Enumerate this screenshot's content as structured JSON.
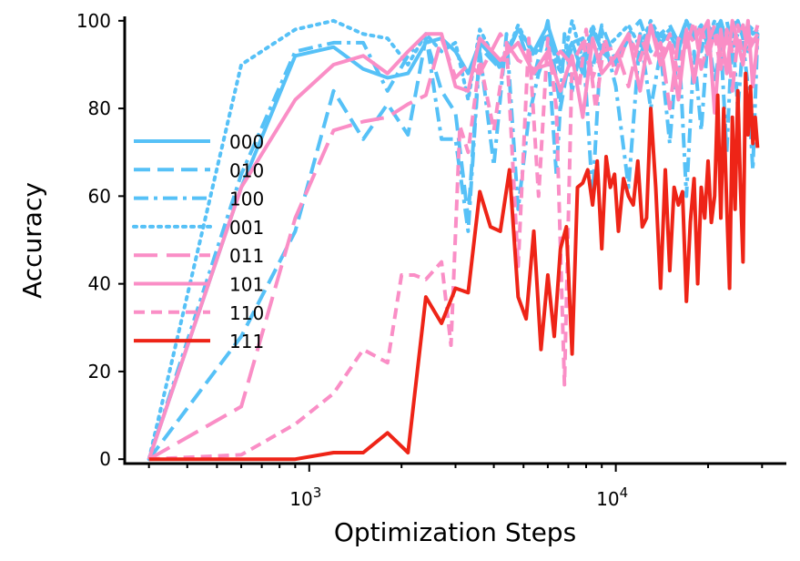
{
  "chart_data": {
    "type": "line",
    "xscale": "log",
    "xlabel": "Optimization Steps",
    "ylabel": "Accuracy",
    "xlim": [
      250,
      36000
    ],
    "ylim": [
      -1,
      101
    ],
    "yticks": [
      0,
      20,
      40,
      60,
      80,
      100
    ],
    "xticks": [
      {
        "value": 1000,
        "base": "10",
        "exp": "3"
      },
      {
        "value": 10000,
        "base": "10",
        "exp": "4"
      }
    ],
    "legend_position": "center-left",
    "series": [
      {
        "name": "000",
        "color": "#56c1f7",
        "dash": "solid",
        "x": [
          300,
          600,
          900,
          1200,
          1500,
          1800,
          2100,
          2400,
          2700,
          3000,
          3300,
          3600,
          4200,
          4800,
          5400,
          6000,
          6600,
          7200,
          7800,
          8400,
          9000,
          10000,
          11000,
          12000,
          13000,
          14000,
          15000,
          16000,
          17000,
          18000,
          19000,
          20000,
          21000,
          22000,
          23000,
          24000,
          25000,
          26000,
          27000,
          28000,
          29000
        ],
        "y": [
          0,
          62,
          92,
          94,
          89,
          87,
          88,
          95,
          96,
          93,
          88,
          95,
          90,
          98,
          93,
          99,
          90,
          95,
          88,
          98,
          93,
          90,
          96,
          92,
          99,
          95,
          97,
          93,
          100,
          96,
          99,
          94,
          97,
          100,
          95,
          98,
          100,
          96,
          99,
          97,
          98
        ]
      },
      {
        "name": "010",
        "color": "#56c1f7",
        "dash": "dashed",
        "x": [
          300,
          600,
          900,
          1200,
          1500,
          1800,
          2100,
          2400,
          2700,
          3000,
          3300,
          3600,
          4200,
          4800,
          5400,
          6000,
          6600,
          7200,
          7800,
          8400,
          9000,
          10000,
          11000,
          12000,
          13000,
          14000,
          15000,
          16000,
          17000,
          18000,
          19000,
          20000,
          21000,
          22000,
          23000,
          24000,
          25000,
          26000,
          27000,
          28000,
          29000
        ],
        "y": [
          0,
          28,
          52,
          84,
          73,
          81,
          74,
          96,
          84,
          79,
          55,
          94,
          89,
          98,
          87,
          100,
          80,
          95,
          96,
          89,
          99,
          91,
          97,
          100,
          93,
          97,
          99,
          95,
          100,
          98,
          93,
          99,
          96,
          98,
          100,
          94,
          97,
          99,
          93,
          96,
          95
        ]
      },
      {
        "name": "100",
        "color": "#56c1f7",
        "dash": "dashdot",
        "x": [
          300,
          600,
          900,
          1200,
          1500,
          1800,
          2100,
          2400,
          2700,
          3000,
          3300,
          3600,
          4000,
          4400,
          4800,
          5200,
          5600,
          6000,
          6400,
          6800,
          7200,
          7800,
          8400,
          9000,
          10000,
          11000,
          12000,
          13000,
          14000,
          15000,
          16000,
          17000,
          18000,
          19000,
          20000,
          21000,
          22000,
          23000,
          24000,
          25000,
          26000,
          27000,
          28000,
          29000
        ],
        "y": [
          0,
          65,
          93,
          95,
          95,
          84,
          92,
          97,
          73,
          73,
          52,
          93,
          67,
          97,
          57,
          78,
          88,
          94,
          65,
          97,
          84,
          96,
          60,
          98,
          85,
          62,
          97,
          80,
          93,
          72,
          97,
          60,
          93,
          75,
          97,
          86,
          95,
          70,
          98,
          80,
          95,
          85,
          66,
          97
        ]
      },
      {
        "name": "001",
        "color": "#56c1f7",
        "dash": "dotted",
        "x": [
          300,
          600,
          900,
          1200,
          1500,
          1800,
          2100,
          2400,
          2700,
          3000,
          3300,
          3600,
          4200,
          4800,
          5400,
          6000,
          6600,
          7200,
          7800,
          8400,
          9000,
          10000,
          11000,
          12000,
          13000,
          14000,
          15000,
          16000,
          17000,
          18000,
          19000,
          20000,
          21000,
          22000,
          23000,
          24000,
          25000,
          26000,
          27000,
          28000,
          29000
        ],
        "y": [
          0,
          90,
          98,
          100,
          97,
          96,
          90,
          97,
          93,
          95,
          82,
          98,
          89,
          99,
          92,
          97,
          88,
          100,
          91,
          99,
          93,
          96,
          99,
          94,
          100,
          96,
          98,
          95,
          100,
          97,
          99,
          96,
          100,
          98,
          97,
          99,
          100,
          96,
          99,
          98,
          97
        ]
      },
      {
        "name": "011",
        "color": "#fa8ec6",
        "dash": "longdash",
        "x": [
          300,
          600,
          900,
          1200,
          1500,
          1800,
          2100,
          2400,
          2700,
          3000,
          3300,
          3600,
          4200,
          4800,
          5400,
          6000,
          6600,
          7200,
          7800,
          8400,
          9000,
          10000,
          11000,
          12000,
          13000,
          14000,
          15000,
          16000,
          17000,
          18000,
          19000,
          20000,
          21000,
          22000,
          23000,
          24000,
          25000,
          26000,
          27000,
          28000,
          29000
        ],
        "y": [
          0,
          12,
          55,
          75,
          77,
          78,
          81,
          83,
          96,
          87,
          90,
          88,
          97,
          91,
          89,
          90,
          93,
          90,
          95,
          87,
          93,
          94,
          85,
          97,
          90,
          95,
          80,
          96,
          94,
          100,
          89,
          95,
          99,
          92,
          97,
          84,
          96,
          99,
          93,
          95,
          97
        ]
      },
      {
        "name": "101",
        "color": "#fa8ec6",
        "dash": "solid",
        "x": [
          300,
          600,
          900,
          1200,
          1500,
          1800,
          2100,
          2400,
          2700,
          3000,
          3300,
          3600,
          4200,
          4800,
          5400,
          6000,
          6600,
          7200,
          7800,
          8400,
          9000,
          10000,
          11000,
          12000,
          13000,
          14000,
          15000,
          16000,
          17000,
          18000,
          19000,
          20000,
          21000,
          22000,
          23000,
          24000,
          25000,
          26000,
          27000,
          28000,
          29000
        ],
        "y": [
          0,
          62,
          82,
          90,
          92,
          88,
          93,
          97,
          97,
          85,
          84,
          96,
          91,
          95,
          88,
          93,
          84,
          92,
          78,
          96,
          88,
          92,
          97,
          84,
          99,
          90,
          95,
          82,
          98,
          86,
          97,
          100,
          79,
          98,
          88,
          100,
          95,
          90,
          100,
          85,
          96
        ]
      },
      {
        "name": "110",
        "color": "#fa8ec6",
        "dash": "shortdash",
        "x": [
          300,
          600,
          900,
          1200,
          1500,
          1800,
          2000,
          2200,
          2400,
          2700,
          2900,
          3100,
          3300,
          3600,
          4000,
          4400,
          4800,
          5200,
          5600,
          6000,
          6400,
          6800,
          7200,
          7600,
          8000,
          8600,
          9200,
          10000,
          11000,
          12000,
          13000,
          14000,
          15000,
          16000,
          17000,
          18000,
          19000,
          20000,
          21000,
          22000,
          23000,
          24000,
          25000,
          26000,
          27000,
          28000,
          29000
        ],
        "y": [
          0,
          1,
          8,
          15,
          25,
          22,
          42,
          42,
          41,
          45,
          26,
          76,
          70,
          91,
          75,
          95,
          44,
          96,
          60,
          96,
          80,
          17,
          91,
          85,
          98,
          80,
          96,
          88,
          97,
          91,
          99,
          92,
          97,
          87,
          98,
          95,
          99,
          92,
          97,
          89,
          98,
          93,
          99,
          91,
          97,
          95,
          99
        ]
      },
      {
        "name": "111",
        "color": "#ee2417",
        "dash": "solid",
        "x": [
          300,
          600,
          900,
          1200,
          1500,
          1800,
          2100,
          2400,
          2700,
          3000,
          3300,
          3600,
          3900,
          4200,
          4500,
          4800,
          5100,
          5400,
          5700,
          6000,
          6300,
          6600,
          6900,
          7200,
          7500,
          7800,
          8100,
          8400,
          8700,
          9000,
          9300,
          9600,
          9900,
          10200,
          10600,
          11000,
          11400,
          11800,
          12200,
          12600,
          13000,
          13500,
          14000,
          14500,
          15000,
          15500,
          16000,
          16500,
          17000,
          17500,
          18000,
          18500,
          19000,
          19500,
          20000,
          20500,
          21000,
          21500,
          22000,
          22500,
          23000,
          23500,
          24000,
          24500,
          25000,
          25500,
          26000,
          26500,
          27000,
          27500,
          28000,
          28500,
          29000
        ],
        "y": [
          0,
          0,
          0,
          1.5,
          1.5,
          6,
          1.5,
          37,
          31,
          39,
          38,
          61,
          53,
          52,
          66,
          37,
          32,
          52,
          25,
          42,
          28,
          48,
          53,
          24,
          62,
          63,
          66,
          58,
          68,
          48,
          69,
          62,
          65,
          52,
          64,
          60,
          58,
          68,
          53,
          55,
          80,
          62,
          39,
          66,
          43,
          62,
          58,
          61,
          36,
          54,
          64,
          40,
          62,
          55,
          68,
          54,
          60,
          83,
          55,
          80,
          58,
          39,
          78,
          57,
          84,
          62,
          45,
          88,
          74,
          85,
          72,
          78,
          71
        ]
      }
    ]
  }
}
